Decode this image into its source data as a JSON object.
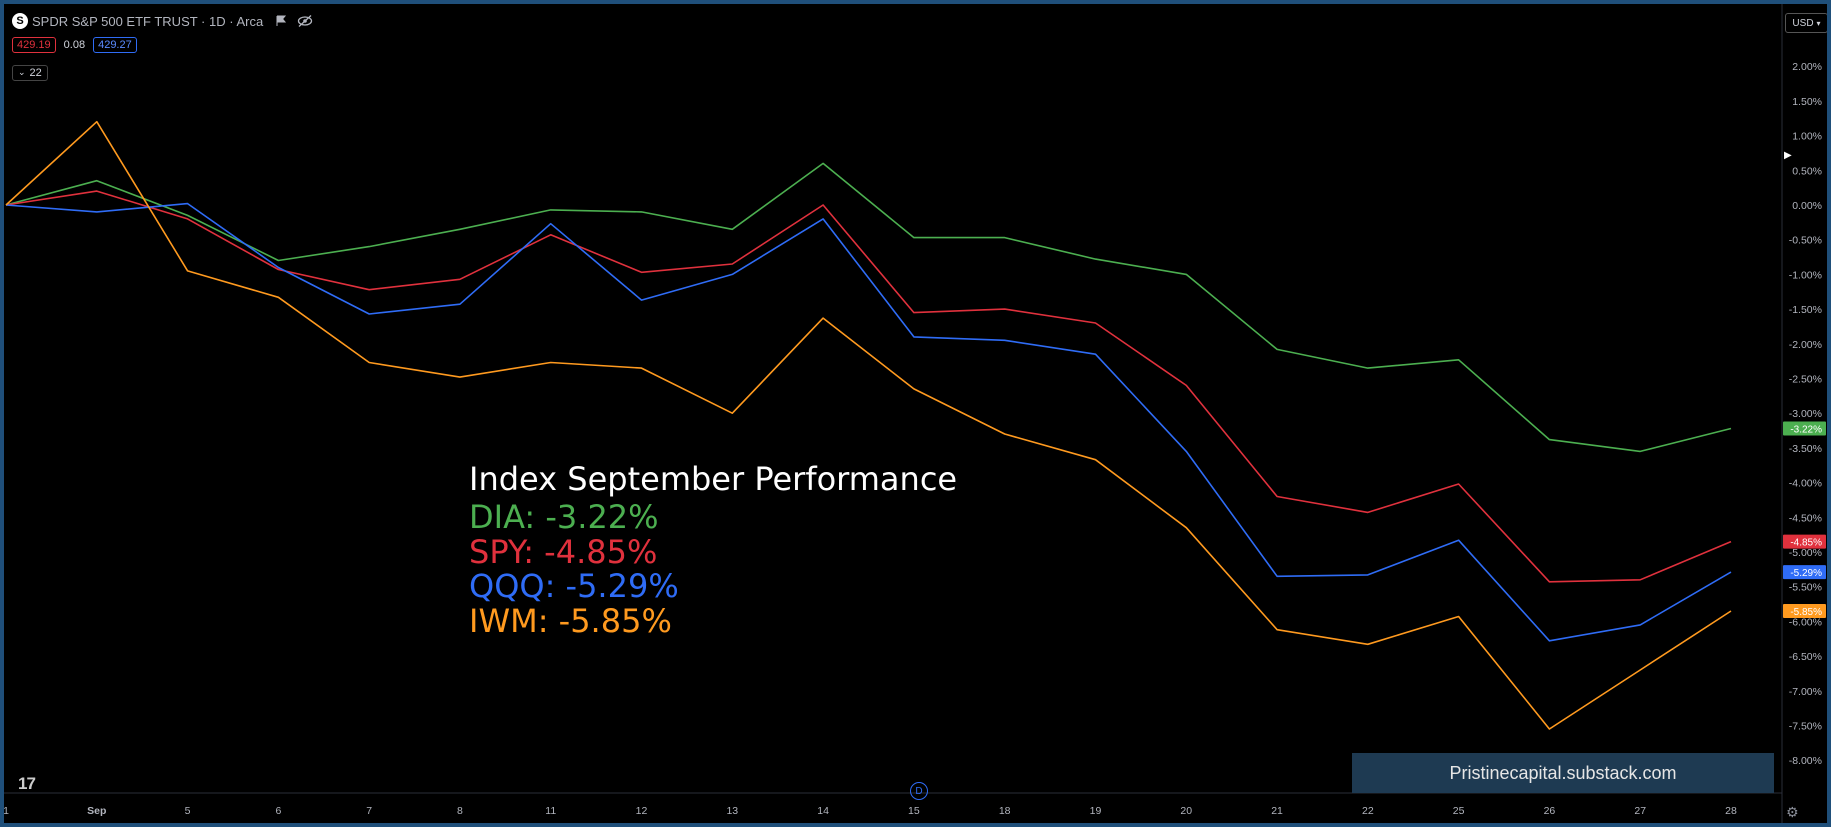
{
  "header": {
    "symbol_icon": "S",
    "title": "SPDR S&P 500 ETF TRUST · 1D · Arca",
    "price_left": "429.19",
    "price_change": "0.08",
    "price_right": "429.27",
    "indicator_count": "22"
  },
  "currency_button": "USD",
  "annotation": {
    "title": "Index September Performance",
    "lines": [
      {
        "text": "DIA: -3.22%",
        "color": "#4caf50"
      },
      {
        "text": "SPY: -4.85%",
        "color": "#e0313d"
      },
      {
        "text": "QQQ: -5.29%",
        "color": "#2f6cf6"
      },
      {
        "text": "IWM: -5.85%",
        "color": "#ff9a1f"
      }
    ]
  },
  "watermark": "Pristinecapital.substack.com",
  "logo_text": "17",
  "marker_text": "D",
  "colors": {
    "dia": "#4caf50",
    "spy": "#e0313d",
    "qqq": "#2f6cf6",
    "iwm": "#ff9a1f"
  },
  "chart_data": {
    "type": "line",
    "x": [
      "1",
      "Sep",
      "5",
      "6",
      "7",
      "8",
      "11",
      "12",
      "13",
      "14",
      "15",
      "18",
      "19",
      "20",
      "21",
      "22",
      "25",
      "26",
      "27",
      "28"
    ],
    "x_tick_labels": [
      "1",
      "Sep",
      "5",
      "6",
      "7",
      "8",
      "11",
      "12",
      "13",
      "14",
      "15",
      "18",
      "19",
      "20",
      "21",
      "22",
      "25",
      "26",
      "27",
      "28"
    ],
    "y_ticks": [
      "2.00%",
      "1.50%",
      "1.00%",
      "0.50%",
      "0.00%",
      "-0.50%",
      "-1.00%",
      "-1.50%",
      "-2.00%",
      "-2.50%",
      "-3.00%",
      "-3.50%",
      "-4.00%",
      "-4.50%",
      "-5.00%",
      "-5.50%",
      "-6.00%",
      "-6.50%",
      "-7.00%",
      "-7.50%",
      "-8.00%"
    ],
    "ylim": [
      -8.3,
      2.5
    ],
    "series": [
      {
        "key": "dia",
        "values": [
          0,
          0.35,
          -0.15,
          -0.8,
          -0.6,
          -0.35,
          -0.07,
          -0.1,
          -0.35,
          0.6,
          -0.47,
          -0.47,
          -0.78,
          -1.0,
          -2.08,
          -2.35,
          -2.23,
          -3.38,
          -3.55,
          -3.22
        ],
        "last_label": "-3.22%"
      },
      {
        "key": "spy",
        "values": [
          0,
          0.2,
          -0.2,
          -0.93,
          -1.22,
          -1.07,
          -0.43,
          -0.97,
          -0.85,
          0.0,
          -1.55,
          -1.5,
          -1.7,
          -2.6,
          -4.2,
          -4.43,
          -4.02,
          -5.43,
          -5.4,
          -4.85
        ],
        "last_label": "-4.85%"
      },
      {
        "key": "qqq",
        "values": [
          0,
          -0.1,
          0.02,
          -0.9,
          -1.57,
          -1.43,
          -0.27,
          -1.37,
          -1.0,
          -0.2,
          -1.9,
          -1.95,
          -2.15,
          -3.55,
          -5.35,
          -5.33,
          -4.83,
          -6.28,
          -6.05,
          -5.29
        ],
        "last_label": "-5.29%"
      },
      {
        "key": "iwm",
        "values": [
          0,
          1.2,
          -0.95,
          -1.33,
          -2.27,
          -2.48,
          -2.27,
          -2.35,
          -3.0,
          -1.63,
          -2.65,
          -3.3,
          -3.67,
          -4.65,
          -6.12,
          -6.33,
          -5.93,
          -7.55,
          -6.7,
          -5.85
        ],
        "last_label": "-5.85%"
      }
    ]
  }
}
